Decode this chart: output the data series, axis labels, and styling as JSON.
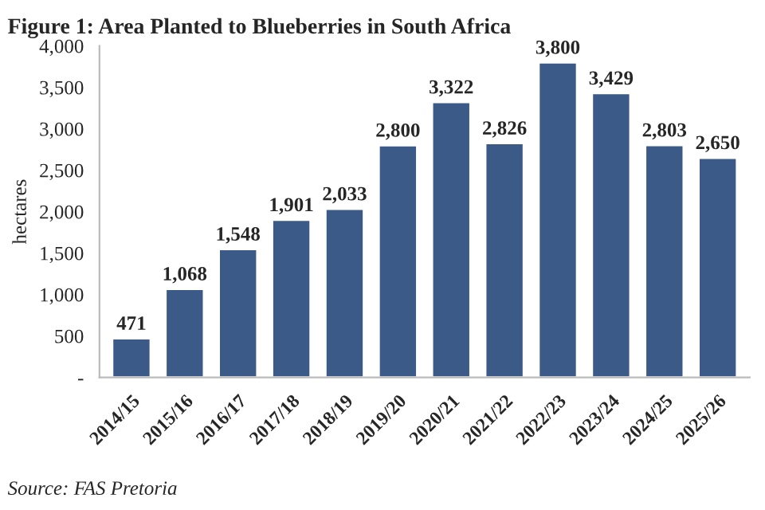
{
  "chart_data": {
    "type": "bar",
    "title": "Figure 1: Area Planted to Blueberries in South Africa",
    "ylabel": "hectares",
    "categories": [
      "2014/15",
      "2015/16",
      "2016/17",
      "2017/18",
      "2018/19",
      "2019/20",
      "2020/21",
      "2021/22",
      "2022/23",
      "2023/24",
      "2024/25",
      "2025/26"
    ],
    "values": [
      471,
      1068,
      1548,
      1901,
      2033,
      2800,
      3322,
      2826,
      3800,
      3429,
      2803,
      2650
    ],
    "value_labels": [
      "471",
      "1,068",
      "1,548",
      "1,901",
      "2,033",
      "2,800",
      "3,322",
      "2,826",
      "3,800",
      "3,429",
      "2,803",
      "2,650"
    ],
    "color": "#3b5a87",
    "grid": false,
    "ylim": [
      0,
      4000
    ],
    "yticks": [
      {
        "value": 0,
        "label": "-"
      },
      {
        "value": 500,
        "label": "500"
      },
      {
        "value": 1000,
        "label": "1,000"
      },
      {
        "value": 1500,
        "label": "1,500"
      },
      {
        "value": 2000,
        "label": "2,000"
      },
      {
        "value": 2500,
        "label": "2,500"
      },
      {
        "value": 3000,
        "label": "3,000"
      },
      {
        "value": 3500,
        "label": "3,500"
      },
      {
        "value": 4000,
        "label": "4,000"
      }
    ],
    "annotations": [
      "Source: FAS Pretoria"
    ]
  }
}
